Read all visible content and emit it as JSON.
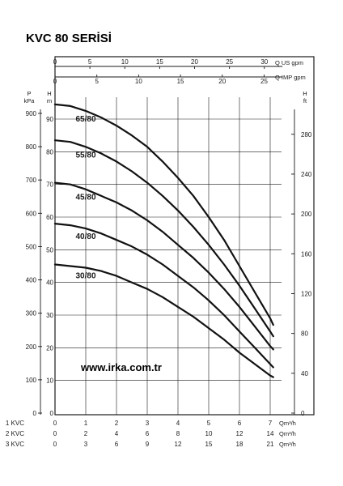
{
  "chart_data": {
    "type": "line",
    "title": "KVC 80 SERİSİ",
    "watermark": "www.irka.com.tr",
    "top_axes": [
      {
        "label": "Q US gpm",
        "ticks": [
          0,
          5,
          10,
          15,
          20,
          25,
          30
        ],
        "max": 32.6
      },
      {
        "label": "Q IMP gpm",
        "ticks": [
          0,
          5,
          10,
          15,
          20,
          25
        ],
        "max": 27.2
      }
    ],
    "left_axes": [
      {
        "label_top": "P",
        "label_bottom": "kPa",
        "ticks": [
          0,
          100,
          200,
          300,
          400,
          500,
          600,
          700,
          800,
          900
        ]
      },
      {
        "label_top": "H",
        "label_bottom": "m",
        "ticks": [
          0,
          10,
          20,
          30,
          40,
          50,
          60,
          70,
          80,
          90
        ]
      }
    ],
    "right_axis": {
      "label_top": "H",
      "label_bottom": "ft",
      "ticks": [
        0,
        40,
        80,
        120,
        160,
        200,
        240,
        280
      ]
    },
    "bottom_axes": [
      {
        "prefix": "1 KVC",
        "ticks": [
          "0",
          "1",
          "2",
          "3",
          "4",
          "5",
          "6",
          "7"
        ],
        "unit": "Qm³/h",
        "max": 7.4
      },
      {
        "prefix": "2 KVC",
        "ticks": [
          "0",
          "2",
          "4",
          "6",
          "8",
          "10",
          "12",
          "14"
        ],
        "unit": "Qm³/h",
        "max": 14.8
      },
      {
        "prefix": "3 KVC",
        "ticks": [
          "0",
          "3",
          "6",
          "9",
          "12",
          "15",
          "18",
          "21"
        ],
        "unit": "Qm³/h",
        "max": 22.2
      }
    ],
    "xlim": [
      0,
      7.4
    ],
    "ylim": [
      0,
      100
    ],
    "grid": true,
    "series": [
      {
        "name": "65/80",
        "label_x": 1.0,
        "x": [
          0,
          0.5,
          1,
          1.5,
          2,
          2.5,
          3,
          3.5,
          4,
          4.5,
          5,
          5.5,
          6,
          6.5,
          7,
          7.1
        ],
        "y": [
          94.5,
          94,
          92.5,
          90.5,
          88,
          85,
          81.5,
          77,
          72,
          66.5,
          60,
          53,
          45,
          37,
          29,
          27
        ]
      },
      {
        "name": "55/80",
        "label_x": 1.0,
        "x": [
          0,
          0.5,
          1,
          1.5,
          2,
          2.5,
          3,
          3.5,
          4,
          4.5,
          5,
          5.5,
          6,
          6.5,
          7,
          7.1
        ],
        "y": [
          83.5,
          83,
          81.5,
          79.5,
          77,
          74,
          70.5,
          66.5,
          62,
          57,
          51.5,
          45.5,
          39,
          32,
          25,
          23.5
        ]
      },
      {
        "name": "45/80",
        "label_x": 1.0,
        "x": [
          0,
          0.5,
          1,
          1.5,
          2,
          2.5,
          3,
          3.5,
          4,
          4.5,
          5,
          5.5,
          6,
          6.5,
          7,
          7.1
        ],
        "y": [
          70.5,
          70,
          68.5,
          66.5,
          64.5,
          62,
          59,
          55.5,
          51.5,
          47.5,
          43,
          38,
          32.5,
          26.5,
          20.5,
          19.5
        ]
      },
      {
        "name": "40/80",
        "label_x": 1.0,
        "x": [
          0,
          0.5,
          1,
          1.5,
          2,
          2.5,
          3,
          3.5,
          4,
          4.5,
          5,
          5.5,
          6,
          6.5,
          7,
          7.1
        ],
        "y": [
          58,
          57.5,
          56.5,
          55,
          53,
          51,
          48.5,
          45.5,
          42,
          38.5,
          34.5,
          30,
          25,
          20,
          15,
          14
        ]
      },
      {
        "name": "30/80",
        "label_x": 1.0,
        "x": [
          0,
          0.5,
          1,
          1.5,
          2,
          2.5,
          3,
          3.5,
          4,
          4.5,
          5,
          5.5,
          6,
          6.5,
          7,
          7.1
        ],
        "y": [
          45.5,
          45,
          44.5,
          43.5,
          42,
          40,
          38,
          35.5,
          32.5,
          29.5,
          26,
          22.5,
          18.5,
          15,
          11.5,
          11
        ]
      }
    ]
  }
}
